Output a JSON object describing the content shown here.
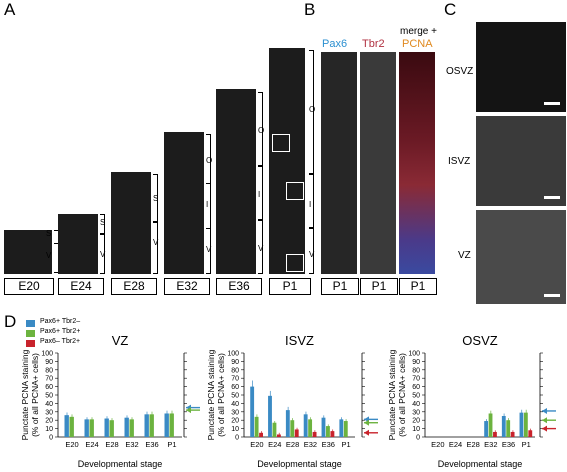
{
  "panel_letters": {
    "a": "A",
    "b": "B",
    "c": "C",
    "d": "D"
  },
  "panelA": {
    "stages": [
      {
        "label": "E20",
        "zones": [
          "S",
          "V"
        ]
      },
      {
        "label": "E24",
        "zones": [
          "S",
          "V"
        ]
      },
      {
        "label": "E28",
        "zones": [
          "S",
          "V"
        ]
      },
      {
        "label": "E32",
        "zones": [
          "O",
          "I",
          "V"
        ]
      },
      {
        "label": "E36",
        "zones": [
          "O",
          "I",
          "V"
        ]
      },
      {
        "label": "P1",
        "zones": []
      }
    ]
  },
  "panelB": {
    "channels": [
      {
        "text": "Pax6",
        "color": "#2b8fd0"
      },
      {
        "text": "Tbr2",
        "color": "#b03040"
      },
      {
        "text": "merge +",
        "color": "#000000"
      },
      {
        "text": "PCNA",
        "color": "#e08a20"
      }
    ],
    "zones": [
      "O",
      "I",
      "V"
    ],
    "labels": [
      "P1",
      "P1",
      "P1"
    ]
  },
  "panelC": {
    "zones": [
      "OSVZ",
      "ISVZ",
      "VZ"
    ]
  },
  "panelD": {
    "legend": [
      {
        "label": "Pax6+  Tbr2–",
        "color": "#3a8ac4"
      },
      {
        "label": "Pax6+  Tbr2+",
        "color": "#6cb33f"
      },
      {
        "label": "Pax6–  Tbr2+",
        "color": "#c8232c"
      }
    ],
    "ylabel_line1": "Punctate PCNA staining",
    "ylabel_line2": "(% of all PCNA+ cells)",
    "xlabel": "Developmental stage"
  },
  "chart_data": [
    {
      "type": "bar",
      "title": "VZ",
      "categories": [
        "E20",
        "E24",
        "E28",
        "E32",
        "E36",
        "P1"
      ],
      "ylim": [
        0,
        100
      ],
      "yticks": [
        0,
        10,
        20,
        30,
        40,
        50,
        60,
        70,
        80,
        90,
        100
      ],
      "xlabel": "Developmental stage",
      "ylabel": "Punctate PCNA staining (% of all PCNA+ cells)",
      "series": [
        {
          "name": "Pax6+  Tbr2–",
          "color": "#3a8ac4",
          "values": [
            26,
            21,
            22,
            23,
            27,
            28
          ]
        },
        {
          "name": "Pax6+  Tbr2+",
          "color": "#6cb33f",
          "values": [
            24,
            21,
            20,
            21,
            27,
            28
          ]
        },
        {
          "name": "Pax6–  Tbr2+",
          "color": "#c8232c",
          "values": [
            0,
            0,
            0,
            0,
            0,
            0
          ]
        }
      ],
      "arrows": [
        {
          "color": "#3a8ac4",
          "value": 35
        },
        {
          "color": "#6cb33f",
          "value": 32
        }
      ]
    },
    {
      "type": "bar",
      "title": "ISVZ",
      "categories": [
        "E20",
        "E24",
        "E28",
        "E32",
        "E36",
        "P1"
      ],
      "ylim": [
        0,
        100
      ],
      "yticks": [
        0,
        10,
        20,
        30,
        40,
        50,
        60,
        70,
        80,
        90,
        100
      ],
      "xlabel": "Developmental stage",
      "ylabel": "Punctate PCNA staining (% of all PCNA+ cells)",
      "series": [
        {
          "name": "Pax6+  Tbr2–",
          "color": "#3a8ac4",
          "values": [
            60,
            49,
            32,
            27,
            23,
            21
          ]
        },
        {
          "name": "Pax6+  Tbr2+",
          "color": "#6cb33f",
          "values": [
            24,
            17,
            20,
            21,
            13,
            19
          ]
        },
        {
          "name": "Pax6–  Tbr2+",
          "color": "#c8232c",
          "values": [
            5,
            3,
            9,
            6,
            7,
            0
          ]
        }
      ],
      "arrows": [
        {
          "color": "#3a8ac4",
          "value": 21
        },
        {
          "color": "#6cb33f",
          "value": 17
        },
        {
          "color": "#c8232c",
          "value": 5
        }
      ]
    },
    {
      "type": "bar",
      "title": "OSVZ",
      "categories": [
        "E20",
        "E24",
        "E28",
        "E32",
        "E36",
        "P1"
      ],
      "ylim": [
        0,
        100
      ],
      "yticks": [
        0,
        10,
        20,
        30,
        40,
        50,
        60,
        70,
        80,
        90,
        100
      ],
      "xlabel": "Developmental stage",
      "ylabel": "Punctate PCNA staining (% of all PCNA+ cells)",
      "series": [
        {
          "name": "Pax6+  Tbr2–",
          "color": "#3a8ac4",
          "values": [
            0,
            0,
            0,
            19,
            25,
            29
          ]
        },
        {
          "name": "Pax6+  Tbr2+",
          "color": "#6cb33f",
          "values": [
            0,
            0,
            0,
            28,
            20,
            29
          ]
        },
        {
          "name": "Pax6–  Tbr2+",
          "color": "#c8232c",
          "values": [
            0,
            0,
            0,
            6,
            6,
            8
          ]
        }
      ],
      "arrows": [
        {
          "color": "#3a8ac4",
          "value": 31
        },
        {
          "color": "#6cb33f",
          "value": 20
        },
        {
          "color": "#c8232c",
          "value": 10
        }
      ]
    }
  ]
}
